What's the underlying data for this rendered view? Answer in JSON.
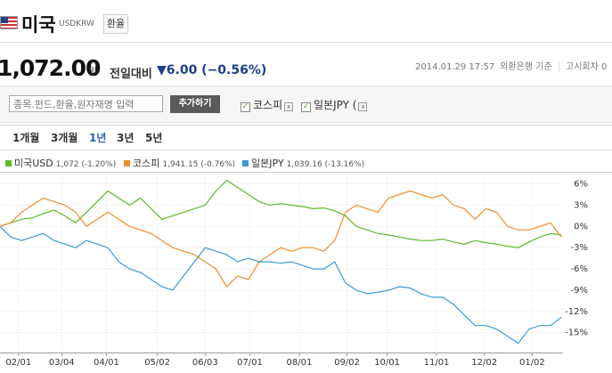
{
  "header": {
    "title": "미국",
    "code": "USDKRW",
    "tag": "환율",
    "price": "1,072.00",
    "unit": "원",
    "change_label": "전일대비",
    "change": "▼6.00 (−0.56%)",
    "datetime": "2014.01.29 17:57",
    "source": "외환은행 기준",
    "round": "고시회차 0"
  },
  "compare": {
    "placeholder": "종목.펀드,환율,원자재명 입력",
    "button": "추가하기",
    "items": [
      "코스피",
      "일본JPY ("
    ]
  },
  "periods": [
    "1개월",
    "3개월",
    "1년",
    "3년",
    "5년"
  ],
  "chart_data": {
    "type": "line",
    "x": [
      0,
      7,
      14,
      21,
      28,
      35,
      42,
      49,
      56,
      63,
      70,
      77,
      84,
      91,
      98,
      105,
      112,
      119,
      126,
      133,
      140,
      147,
      154,
      161,
      168,
      175,
      182,
      189,
      196,
      203,
      210,
      217,
      224,
      231,
      238,
      245,
      252,
      259,
      266,
      273,
      280,
      287,
      294,
      301,
      308,
      315,
      322,
      329,
      336,
      343,
      350,
      357,
      364
    ],
    "xlim": [
      0,
      365
    ],
    "xticks": [
      {
        "value": 12,
        "label": "02/01"
      },
      {
        "value": 40,
        "label": "03/04"
      },
      {
        "value": 69,
        "label": "04/01"
      },
      {
        "value": 102,
        "label": "05/02"
      },
      {
        "value": 133,
        "label": "06/03"
      },
      {
        "value": 162,
        "label": "07/01"
      },
      {
        "value": 194,
        "label": "08/01"
      },
      {
        "value": 225,
        "label": "09/02"
      },
      {
        "value": 251,
        "label": "10/01"
      },
      {
        "value": 283,
        "label": "11/01"
      },
      {
        "value": 314,
        "label": "12/02"
      },
      {
        "value": 345,
        "label": "01/02"
      }
    ],
    "ylim": [
      -17.8,
      7.7
    ],
    "yticks": [
      {
        "value": 6,
        "label": "6%"
      },
      {
        "value": 3,
        "label": "3%"
      },
      {
        "value": 0,
        "label": "0%"
      },
      {
        "value": -3,
        "label": "-3%"
      },
      {
        "value": -6,
        "label": "-6%"
      },
      {
        "value": -9,
        "label": "-9%"
      },
      {
        "value": -12,
        "label": "-12%"
      },
      {
        "value": -15,
        "label": "-15%"
      }
    ],
    "grid": true,
    "series": [
      {
        "name": "미국USD",
        "summary": "1,072 (-1.20%)",
        "color": "#5cb82a",
        "values": [
          0,
          0.5,
          1,
          1.2,
          1.8,
          2.3,
          1.5,
          0.5,
          2,
          3.5,
          5,
          4,
          3,
          4,
          2.5,
          1,
          1.5,
          2,
          2.5,
          3,
          5,
          6.5,
          5.5,
          4.5,
          3.5,
          3,
          3.2,
          3,
          2.8,
          2.5,
          2.6,
          2.2,
          1.5,
          0,
          -0.5,
          -1,
          -1.2,
          -1.5,
          -1.8,
          -2,
          -2,
          -1.8,
          -2.2,
          -2.5,
          -2,
          -2.3,
          -2.5,
          -2.8,
          -3,
          -2.2,
          -1.5,
          -1,
          -1.2
        ]
      },
      {
        "name": "코스피",
        "summary": "1,941.15 (-0.76%)",
        "color": "#ef8e2b",
        "values": [
          0,
          0.5,
          2,
          3,
          4,
          3.5,
          3,
          2,
          0,
          1,
          2,
          1,
          0,
          -0.5,
          -1,
          -2,
          -3,
          -3.5,
          -4,
          -5,
          -6,
          -8.5,
          -7,
          -7.5,
          -5,
          -4,
          -3,
          -3.5,
          -3,
          -3,
          -3.5,
          -2,
          2,
          3,
          2.5,
          2,
          4,
          4.5,
          5,
          4.5,
          4,
          4.5,
          3,
          2.5,
          1,
          2.5,
          2,
          0,
          -0.5,
          -0.5,
          0,
          0.5,
          -1.5
        ]
      },
      {
        "name": "일본JPY",
        "summary": "1,039.16 (-13.16%)",
        "color": "#3b9ad6",
        "values": [
          0,
          -1.5,
          -2,
          -1.5,
          -1,
          -2,
          -2.5,
          -3,
          -2,
          -2.5,
          -3,
          -5,
          -6,
          -6.5,
          -7.5,
          -8.5,
          -9,
          -7,
          -5,
          -3,
          -3.5,
          -4,
          -5,
          -4.5,
          -5,
          -5,
          -5.2,
          -5,
          -5.5,
          -6,
          -6,
          -5,
          -8,
          -9,
          -9.5,
          -9.3,
          -9,
          -8.5,
          -8.7,
          -9.5,
          -10,
          -10,
          -11,
          -12.5,
          -14,
          -14,
          -14.5,
          -15.5,
          -16.5,
          -14.5,
          -14,
          -14,
          -12.8
        ]
      }
    ]
  }
}
